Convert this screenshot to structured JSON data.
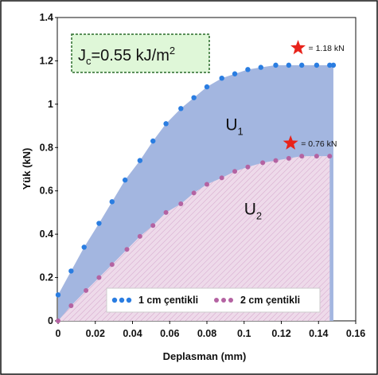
{
  "chart_data": {
    "type": "scatter",
    "xlabel": "Deplasman (mm)",
    "ylabel": "Yük (kN)",
    "xlim": [
      0,
      0.16
    ],
    "ylim": [
      0,
      1.4
    ],
    "xticks": [
      "0",
      "0.02",
      "0.04",
      "0.06",
      "0.08",
      "0.1",
      "0.12",
      "0.14",
      "0.16"
    ],
    "yticks": [
      "0",
      "0.2",
      "0.4",
      "0.6",
      "0.8",
      "1",
      "1.2",
      "1.4"
    ],
    "grid": false,
    "legend_position": "bottom-center",
    "series": [
      {
        "name": "1 cm çentikli",
        "color": "#2a7de1",
        "fill_color": "#a3b6e0",
        "x": [
          0,
          0.007,
          0.014,
          0.022,
          0.029,
          0.036,
          0.044,
          0.051,
          0.058,
          0.066,
          0.073,
          0.08,
          0.088,
          0.095,
          0.102,
          0.109,
          0.117,
          0.124,
          0.131,
          0.139,
          0.146,
          0.148
        ],
        "y": [
          0.12,
          0.23,
          0.34,
          0.45,
          0.55,
          0.65,
          0.74,
          0.83,
          0.91,
          0.98,
          1.03,
          1.08,
          1.12,
          1.14,
          1.16,
          1.17,
          1.18,
          1.18,
          1.18,
          1.18,
          1.18,
          1.18
        ]
      },
      {
        "name": "2 cm çentikli",
        "color": "#b463a2",
        "fill_color": "#eedaea",
        "x": [
          0,
          0.007,
          0.015,
          0.022,
          0.029,
          0.037,
          0.044,
          0.051,
          0.058,
          0.066,
          0.073,
          0.08,
          0.088,
          0.095,
          0.102,
          0.11,
          0.117,
          0.124,
          0.131,
          0.139,
          0.146
        ],
        "y": [
          0.0,
          0.07,
          0.14,
          0.2,
          0.26,
          0.33,
          0.39,
          0.44,
          0.5,
          0.54,
          0.59,
          0.63,
          0.66,
          0.69,
          0.71,
          0.73,
          0.74,
          0.75,
          0.76,
          0.76,
          0.76
        ]
      }
    ],
    "region_labels": [
      {
        "base": "U",
        "sub": "1",
        "x": 0.09,
        "y": 0.88
      },
      {
        "base": "U",
        "sub": "2",
        "x": 0.1,
        "y": 0.49
      }
    ],
    "peak_markers": [
      {
        "x": 0.129,
        "y": 1.26,
        "label": "= 1.18 kN",
        "color": "#e8231b"
      },
      {
        "x": 0.125,
        "y": 0.82,
        "label": "= 0.76 kN",
        "color": "#e8231b"
      }
    ],
    "annotation_box": {
      "symbol": "J",
      "sub": "c",
      "value": "=0.55 kJ/m",
      "sup": "2",
      "background": "#dff7d8",
      "border": "#2a6b2a"
    }
  }
}
